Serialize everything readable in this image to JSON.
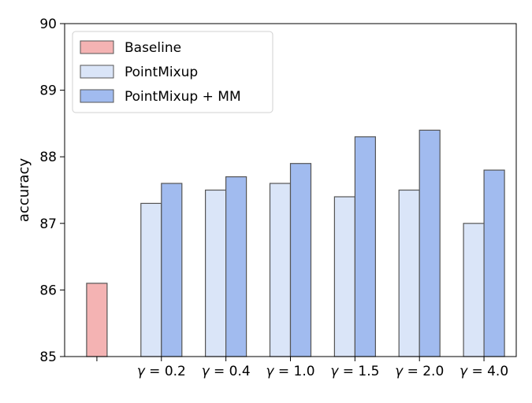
{
  "chart_data": {
    "type": "bar",
    "title": "",
    "xlabel": "",
    "ylabel": "accuracy",
    "ylim": [
      85,
      90
    ],
    "yticks": [
      "85",
      "86",
      "87",
      "88",
      "89",
      "90"
    ],
    "categories": [
      "",
      "γ = 0.2",
      "γ = 0.4",
      "γ = 1.0",
      "γ = 1.5",
      "γ = 2.0",
      "γ = 4.0"
    ],
    "series": [
      {
        "name": "Baseline",
        "color": "#f4b3b3",
        "values": [
          86.1,
          null,
          null,
          null,
          null,
          null,
          null
        ]
      },
      {
        "name": "PointMixup",
        "color": "#dae5f8",
        "values": [
          null,
          87.3,
          87.5,
          87.6,
          87.4,
          87.5,
          87.0
        ]
      },
      {
        "name": "PointMixup + MM",
        "color": "#a1bbef",
        "values": [
          null,
          87.6,
          87.7,
          87.9,
          88.3,
          88.4,
          87.8
        ]
      }
    ],
    "grid": false,
    "legend_position": "top-left",
    "bar_edge_color": "#555555"
  }
}
